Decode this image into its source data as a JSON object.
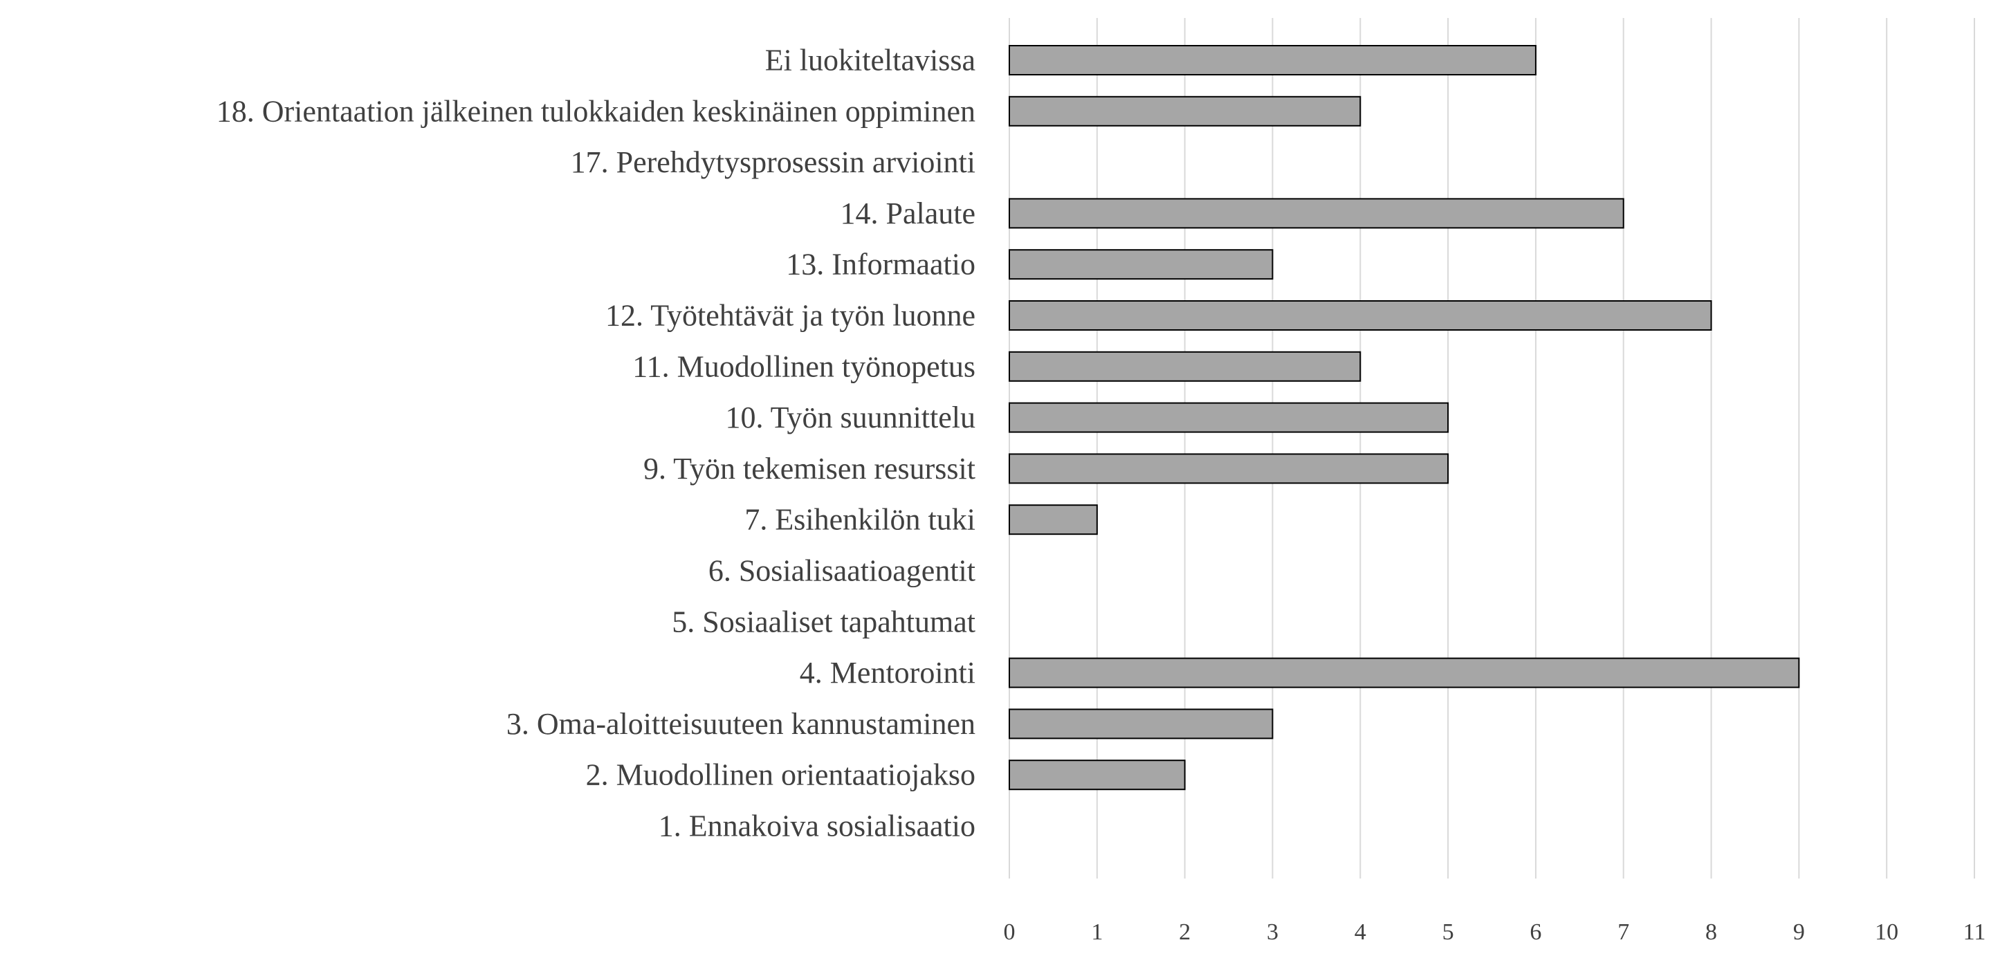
{
  "chart_data": {
    "type": "bar",
    "orientation": "horizontal",
    "categories": [
      "Ei luokiteltavissa",
      "18. Orientaation jälkeinen tulokkaiden keskinäinen oppiminen",
      "17. Perehdytysprosessin arviointi",
      "14. Palaute",
      "13. Informaatio",
      "12. Työtehtävät ja työn luonne",
      "11. Muodollinen työnopetus",
      "10. Työn suunnittelu",
      "9. Työn tekemisen resurssit",
      "7. Esihenkilön tuki",
      "6. Sosialisaatioagentit",
      "5. Sosiaaliset tapahtumat",
      "4. Mentorointi",
      "3. Oma-aloitteisuuteen kannustaminen",
      "2. Muodollinen orientaatiojakso",
      "1. Ennakoiva sosialisaatio"
    ],
    "values": [
      6,
      4,
      0,
      7,
      3,
      8,
      4,
      5,
      5,
      1,
      0,
      0,
      9,
      3,
      2,
      0
    ],
    "xlim": [
      0,
      11
    ],
    "xticks": [
      "0",
      "1",
      "2",
      "3",
      "4",
      "5",
      "6",
      "7",
      "8",
      "9",
      "10",
      "11"
    ],
    "grid": "vertical",
    "legend": "none",
    "bar_color": "#a6a6a6",
    "bar_edge_color": "#000000",
    "gridline_color": "#d9d9d9",
    "label_color": "#404040"
  }
}
